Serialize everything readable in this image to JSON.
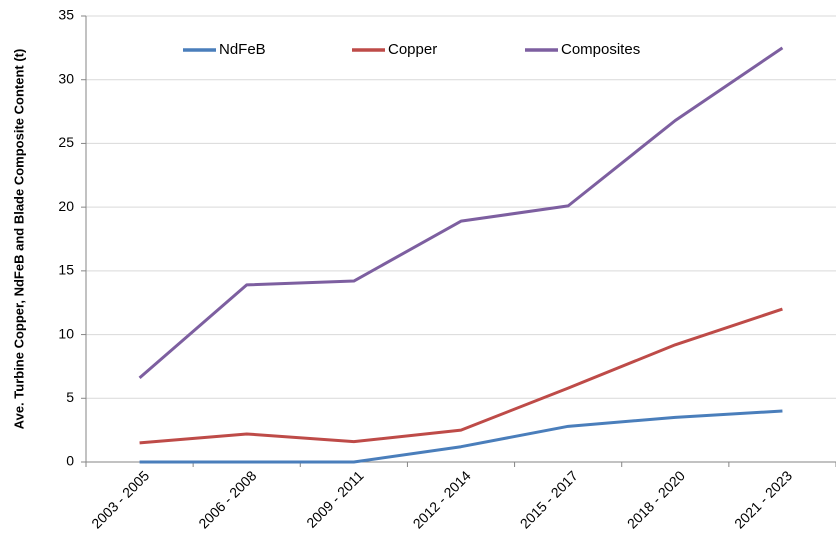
{
  "chart_data": {
    "type": "line",
    "y_label": "Ave. Turbine Copper, NdFeB and Blade Composite Content (t)",
    "categories": [
      "2003 - 2005",
      "2006 - 2008",
      "2009 - 2011",
      "2012 - 2014",
      "2015 - 2017",
      "2018 - 2020",
      "2021 - 2023"
    ],
    "series": [
      {
        "name": "NdFeB",
        "color": "#4a7ebb",
        "values": [
          0,
          0,
          0,
          1.2,
          2.8,
          3.5,
          4.0
        ]
      },
      {
        "name": "Copper",
        "color": "#be4b48",
        "values": [
          1.5,
          2.2,
          1.6,
          2.5,
          5.8,
          9.2,
          12.0
        ]
      },
      {
        "name": "Composites",
        "color": "#7d5fa0",
        "values": [
          6.6,
          13.9,
          14.2,
          18.9,
          20.1,
          26.8,
          32.5
        ]
      }
    ],
    "ylim": [
      0,
      35
    ],
    "yticks": [
      0,
      5,
      10,
      15,
      20,
      25,
      30,
      35
    ],
    "grid": true,
    "legend": "top"
  }
}
